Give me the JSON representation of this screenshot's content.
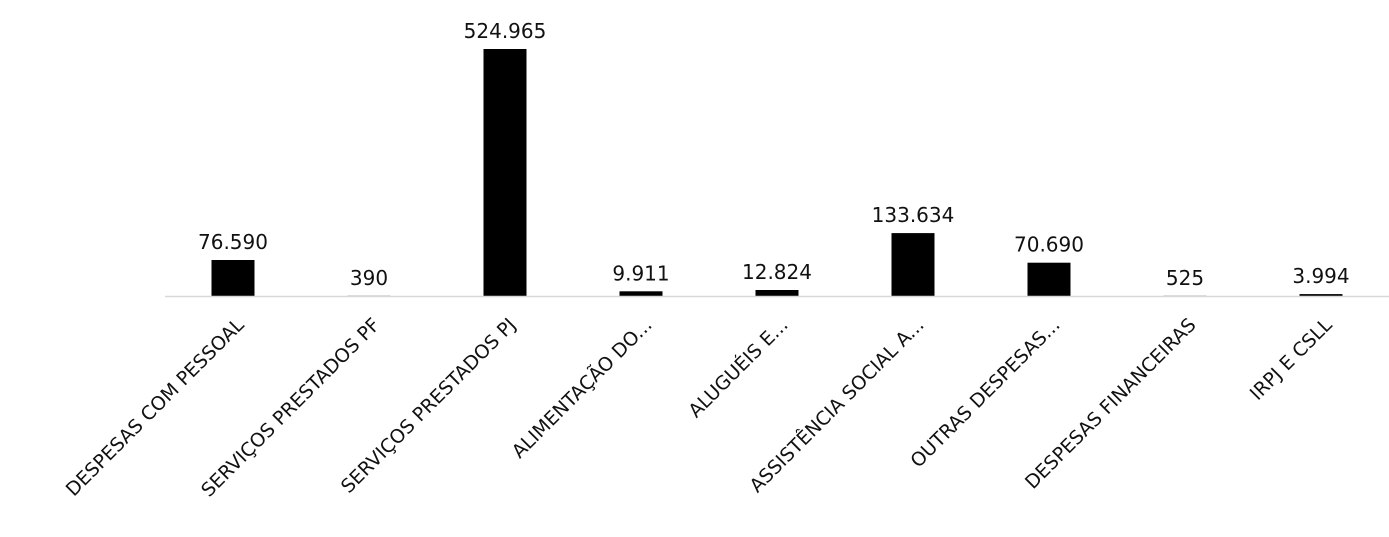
{
  "chart_data": {
    "type": "bar",
    "categories": [
      "DESPESAS COM PESSOAL",
      "SERVIÇOS PRESTADOS PF",
      "SERVIÇOS PRESTADOS PJ",
      "ALIMENTAÇÃO DO...",
      "ALUGUÉIS E...",
      "ASSISTÊNCIA SOCIAL A...",
      "OUTRAS DESPESAS...",
      "DESPESAS FINANCEIRAS",
      "IRPJ E CSLL"
    ],
    "values": [
      76590,
      390,
      524965,
      9911,
      12824,
      133634,
      70690,
      525,
      3994
    ],
    "value_labels": [
      "76.590",
      "390",
      "524.965",
      "9.911",
      "12.824",
      "133.634",
      "70.690",
      "525",
      "3.994"
    ],
    "title": "",
    "xlabel": "",
    "ylabel": "",
    "ylim": [
      0,
      524965
    ],
    "grid": false,
    "bar_color": "#000000",
    "axis_color": "#d9d9d9"
  }
}
